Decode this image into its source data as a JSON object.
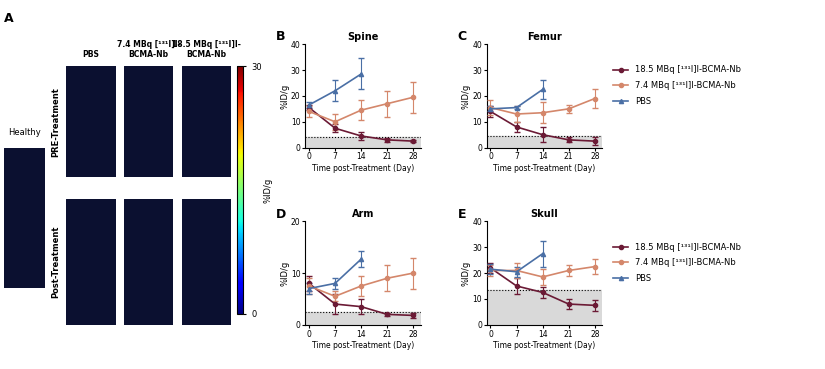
{
  "panel_a": {
    "panel": "A",
    "healthy_label": "Healthy",
    "columns": [
      "PBS",
      "7.4 MBq [¹³¹I]I-\nBCMA-Nb",
      "18.5 MBq [¹³¹I]I-\nBCMA-Nb"
    ],
    "rows": [
      "PRE-Treatment",
      "Post-Treatment"
    ],
    "colorbar": {
      "label": "%ID/g",
      "range": [
        0,
        30
      ],
      "ticks": [
        0,
        30
      ]
    }
  },
  "chart_data": [
    {
      "type": "line",
      "panel": "B",
      "title": "Spine",
      "x_label": "Time post-Treatment (Day)",
      "y_label": "%ID/g",
      "x": [
        0,
        7,
        14,
        21,
        28
      ],
      "xlim": [
        -1,
        30
      ],
      "xticks": [
        0,
        7,
        14,
        21,
        28
      ],
      "ylim": [
        0,
        40
      ],
      "yticks": [
        0,
        10,
        20,
        30,
        40
      ],
      "healthy_level": 4,
      "series": [
        {
          "name": "18.5 MBq [¹³¹I]I-BCMA-Nb",
          "color": "#6b1a35",
          "marker": "circle",
          "values": [
            15.5,
            7.5,
            4.5,
            3,
            2.5
          ],
          "error": [
            1,
            1.5,
            1.5,
            0.8,
            0.5
          ]
        },
        {
          "name": "7.4 MBq [¹³¹I]I-BCMA-Nb",
          "color": "#d4876b",
          "marker": "circle",
          "values": [
            14,
            10,
            14.5,
            17,
            19.5
          ],
          "error": [
            2,
            3,
            4,
            5,
            6
          ]
        },
        {
          "name": "PBS",
          "color": "#4a6fa5",
          "marker": "triangle",
          "values": [
            16.5,
            22,
            28.5,
            null,
            null
          ],
          "error": [
            1,
            4,
            6,
            null,
            null
          ]
        }
      ]
    },
    {
      "type": "line",
      "panel": "C",
      "title": "Femur",
      "x_label": "Time post-Treatment (Day)",
      "y_label": "%ID/g",
      "x": [
        0,
        7,
        14,
        21,
        28
      ],
      "xlim": [
        -1,
        30
      ],
      "xticks": [
        0,
        7,
        14,
        21,
        28
      ],
      "ylim": [
        0,
        40
      ],
      "yticks": [
        0,
        10,
        20,
        30,
        40
      ],
      "healthy_level": 4.5,
      "legend": "right",
      "series": [
        {
          "name": "18.5 MBq [¹³¹I]I-BCMA-Nb",
          "color": "#6b1a35",
          "marker": "circle",
          "values": [
            14,
            8,
            5,
            3,
            2.5
          ],
          "error": [
            2,
            2,
            3,
            1,
            1.5
          ]
        },
        {
          "name": "7.4 MBq [¹³¹I]I-BCMA-Nb",
          "color": "#d4876b",
          "marker": "circle",
          "values": [
            15.5,
            13,
            13.5,
            15,
            19
          ],
          "error": [
            3,
            3,
            4,
            1.5,
            3.5
          ]
        },
        {
          "name": "PBS",
          "color": "#4a6fa5",
          "marker": "triangle",
          "values": [
            15,
            15.5,
            22.5,
            null,
            null
          ],
          "error": [
            1,
            0.5,
            3.5,
            null,
            null
          ]
        }
      ]
    },
    {
      "type": "line",
      "panel": "D",
      "title": "Arm",
      "x_label": "Time post-Treatment (Day)",
      "y_label": "%ID/g",
      "x": [
        0,
        7,
        14,
        21,
        28
      ],
      "xlim": [
        -1,
        30
      ],
      "xticks": [
        0,
        7,
        14,
        21,
        28
      ],
      "ylim": [
        0,
        20
      ],
      "yticks": [
        0,
        10,
        20
      ],
      "healthy_level": 2.5,
      "series": [
        {
          "name": "18.5 MBq [¹³¹I]I-BCMA-Nb",
          "color": "#6b1a35",
          "marker": "circle",
          "values": [
            8,
            4,
            3.5,
            2,
            1.8
          ],
          "error": [
            1.5,
            2,
            1.5,
            0.3,
            0.5
          ]
        },
        {
          "name": "7.4 MBq [¹³¹I]I-BCMA-Nb",
          "color": "#d4876b",
          "marker": "circle",
          "values": [
            7.5,
            5.5,
            7.5,
            9,
            10
          ],
          "error": [
            1.5,
            1,
            2,
            2.5,
            3
          ]
        },
        {
          "name": "PBS",
          "color": "#4a6fa5",
          "marker": "triangle",
          "values": [
            7,
            8,
            12.7,
            null,
            null
          ],
          "error": [
            1,
            1,
            1.5,
            null,
            null
          ]
        }
      ]
    },
    {
      "type": "line",
      "panel": "E",
      "title": "Skull",
      "x_label": "Time post-Treatment (Day)",
      "y_label": "%ID/g",
      "x": [
        0,
        7,
        14,
        21,
        28
      ],
      "xlim": [
        -1,
        30
      ],
      "xticks": [
        0,
        7,
        14,
        21,
        28
      ],
      "ylim": [
        0,
        40
      ],
      "yticks": [
        0,
        10,
        20,
        30,
        40
      ],
      "healthy_level": 13.5,
      "legend": "right",
      "series": [
        {
          "name": "18.5 MBq [¹³¹I]I-BCMA-Nb",
          "color": "#6b1a35",
          "marker": "circle",
          "values": [
            22,
            15,
            12.5,
            8,
            7.5
          ],
          "error": [
            2,
            3,
            2,
            2,
            2
          ]
        },
        {
          "name": "7.4 MBq [¹³¹I]I-BCMA-Nb",
          "color": "#d4876b",
          "marker": "circle",
          "values": [
            21,
            21,
            18.5,
            21,
            22.5
          ],
          "error": [
            2,
            3,
            3,
            2,
            3
          ]
        },
        {
          "name": "PBS",
          "color": "#4a6fa5",
          "marker": "triangle",
          "values": [
            21.5,
            20.5,
            27.5,
            null,
            null
          ],
          "error": [
            2,
            2,
            5,
            null,
            null
          ]
        }
      ]
    }
  ]
}
